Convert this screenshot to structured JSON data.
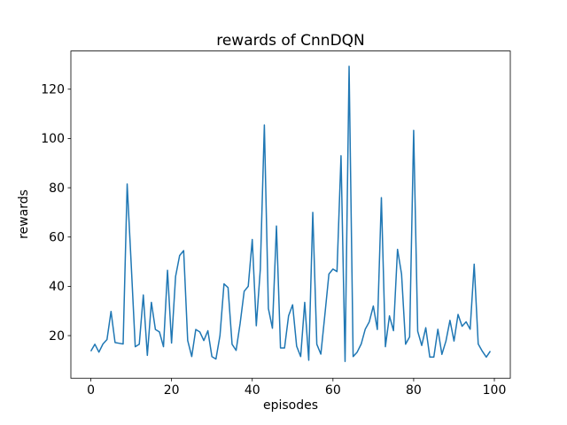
{
  "figure": {
    "background": "#ffffff"
  },
  "chart_data": {
    "type": "line",
    "title": "rewards of CnnDQN",
    "xlabel": "episodes",
    "ylabel": "rewards",
    "grid": false,
    "legend": "none",
    "xlim": [
      -4.95,
      103.95
    ],
    "ylim": [
      2.7,
      135.5
    ],
    "xticks": [
      0,
      20,
      40,
      60,
      80,
      100
    ],
    "yticks": [
      20,
      40,
      60,
      80,
      100,
      120
    ],
    "axis_color": "#000000",
    "series": [
      {
        "name": "rewards",
        "color": "#1f77b4",
        "x": [
          0,
          1,
          2,
          3,
          4,
          5,
          6,
          7,
          8,
          9,
          10,
          11,
          12,
          13,
          14,
          15,
          16,
          17,
          18,
          19,
          20,
          21,
          22,
          23,
          24,
          25,
          26,
          27,
          28,
          29,
          30,
          31,
          32,
          33,
          34,
          35,
          36,
          37,
          38,
          39,
          40,
          41,
          42,
          43,
          44,
          45,
          46,
          47,
          48,
          49,
          50,
          51,
          52,
          53,
          54,
          55,
          56,
          57,
          58,
          59,
          60,
          61,
          62,
          63,
          64,
          65,
          66,
          67,
          68,
          69,
          70,
          71,
          72,
          73,
          74,
          75,
          76,
          77,
          78,
          79,
          80,
          81,
          82,
          83,
          84,
          85,
          86,
          87,
          88,
          89,
          90,
          91,
          92,
          93,
          94,
          95,
          96,
          97,
          98,
          99
        ],
        "y": [
          13.7,
          16.5,
          13.3,
          16.6,
          18.4,
          29.8,
          17.2,
          16.9,
          16.6,
          81.5,
          49.0,
          15.5,
          16.5,
          36.5,
          12.0,
          33.5,
          22.5,
          21.5,
          15.5,
          46.5,
          17.0,
          44.0,
          52.5,
          54.5,
          18.0,
          11.5,
          22.5,
          21.5,
          18.0,
          22.0,
          11.5,
          10.5,
          20.0,
          41.0,
          39.5,
          16.5,
          14.0,
          25.0,
          38.0,
          40.0,
          59.0,
          24.0,
          47.0,
          105.5,
          31.0,
          23.0,
          64.5,
          15.0,
          15.0,
          28.0,
          32.5,
          15.7,
          11.5,
          33.5,
          10.0,
          70.0,
          16.5,
          12.5,
          28.5,
          45.0,
          47.0,
          46.0,
          93.0,
          9.5,
          129.3,
          11.5,
          13.3,
          16.6,
          22.6,
          25.6,
          32.0,
          22.5,
          76.0,
          15.5,
          28.0,
          22.0,
          55.0,
          45.0,
          16.5,
          19.5,
          103.3,
          21.8,
          16.0,
          23.2,
          11.3,
          11.3,
          22.6,
          12.4,
          17.8,
          26.2,
          17.8,
          28.6,
          23.8,
          25.6,
          22.6,
          49.0,
          16.6,
          13.7,
          11.3,
          13.7
        ]
      }
    ]
  }
}
